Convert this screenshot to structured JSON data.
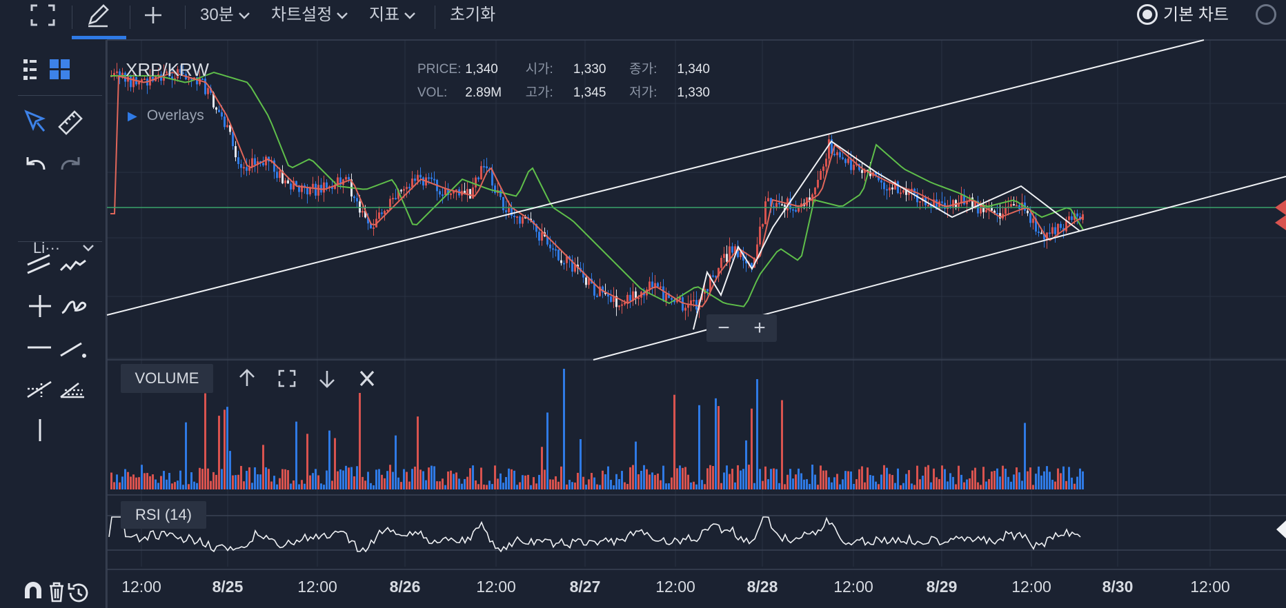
{
  "toolbar": {
    "timeframe": "30분",
    "chart_settings": "차트설정",
    "indicators": "지표",
    "reset": "초기화",
    "chart_mode_basic": "기본 차트"
  },
  "left_panel": {
    "line_style": "Li···"
  },
  "chart": {
    "symbol": "XRP/KRW",
    "overlays_label": "Overlays",
    "legend": {
      "price_label": "PRICE:",
      "price": "1,340",
      "open_label": "시가:",
      "open": "1,330",
      "close_label": "종가:",
      "close": "1,340",
      "vol_label": "VOL:",
      "vol": "2.89M",
      "high_label": "고가:",
      "high": "1,345",
      "low_label": "저가:",
      "low": "1,330"
    },
    "zoom_out": "−",
    "zoom_in": "+"
  },
  "volume_pane": {
    "label": "VOLUME"
  },
  "rsi_pane": {
    "label": "RSI (14)"
  },
  "x_axis": {
    "ticks": [
      "12:00",
      "8/25",
      "12:00",
      "8/26",
      "12:00",
      "8/27",
      "12:00",
      "8/28",
      "12:00",
      "8/29",
      "12:00",
      "8/30",
      "12:00"
    ]
  },
  "colors": {
    "background": "#1b2231",
    "up_candle": "#d9534f",
    "down_candle": "#2f7ae5",
    "ma_fast": "#e0665a",
    "ma_slow": "#5fbf4a",
    "accent": "#2f7ae5"
  }
}
